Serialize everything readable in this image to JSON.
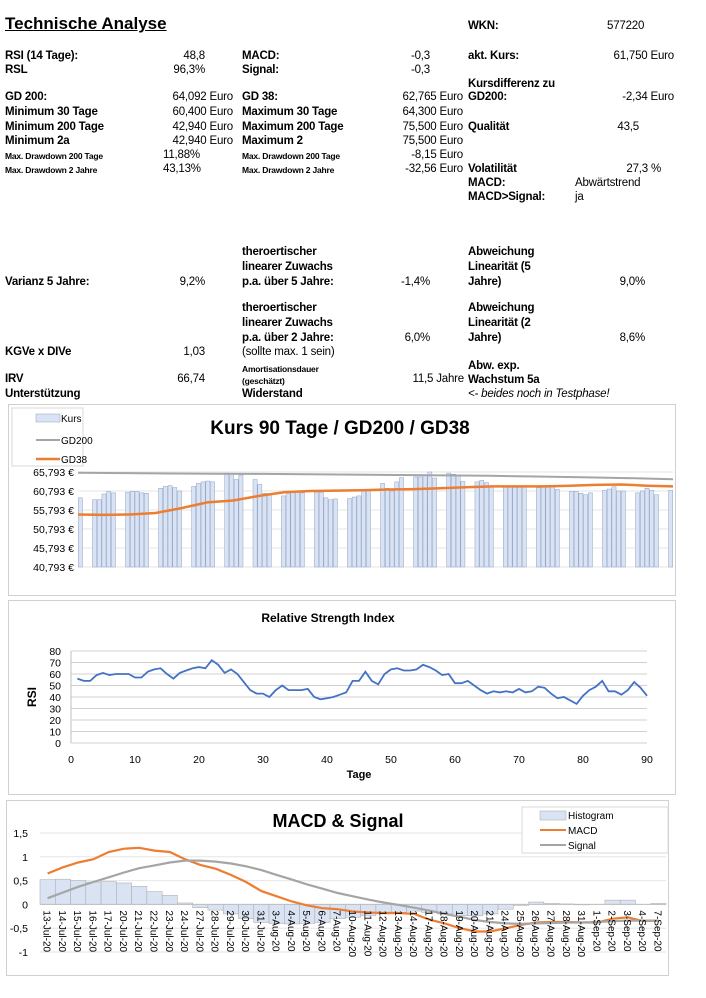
{
  "header": {
    "title": "Technische Analyse",
    "wkn_label": "WKN:",
    "wkn_value": "577220"
  },
  "col1": {
    "rsi_label": "RSI (14 Tage):",
    "rsi": "48,8",
    "rsl_label": "RSL",
    "rsl": "96,3%",
    "gd200_label": "GD 200:",
    "gd200": "64,092 Euro",
    "min30_label": "Minimum 30 Tage",
    "min30": "60,400 Euro",
    "min200_label": "Minimum 200 Tage",
    "min200": "42,940 Euro",
    "min2a_label": "Minimum 2a",
    "min2a": "42,940 Euro",
    "mdd200_label": "Max. Drawdown 200 Tage",
    "mdd200": "11,88%",
    "mdd2_label": "Max. Drawdown 2 Jahre",
    "mdd2": "43,13%",
    "varianz_label": "Varianz 5 Jahre:",
    "varianz": "9,2%",
    "kgve_label": "KGVe x DIVe",
    "kgve": "1,03",
    "irv_label": "IRV",
    "irv": "66,74",
    "unterstuetzung_label": "Unterstützung"
  },
  "col2": {
    "macd_label": "MACD:",
    "macd": "-0,3",
    "signal_label": "Signal:",
    "signal": "-0,3",
    "gd38_label": "GD 38:",
    "gd38": "62,765 Euro",
    "max30_label": "Maximum 30 Tage",
    "max30": "64,300 Euro",
    "max200_label": "Maximum 200 Tage",
    "max200": "75,500 Euro",
    "max2_label": "Maximum 2",
    "max2": "75,500 Euro",
    "mdd200_label": "Max. Drawdown 200 Tage",
    "mdd200": "-8,15 Euro",
    "mdd2_label": "Max. Drawdown 2 Jahre",
    "mdd2": "-32,56 Euro",
    "zuwachs5_l1": "theroertischer",
    "zuwachs5_l2": "linearer Zuwachs",
    "zuwachs5_l3": "p.a. über 5 Jahre:",
    "zuwachs5": "-1,4%",
    "zuwachs2_l1": "theroertischer",
    "zuwachs2_l2": "linearer Zuwachs",
    "zuwachs2_l3": "p.a. über 2 Jahre:",
    "zuwachs2": "6,0%",
    "sollte": "(sollte max. 1 sein)",
    "amort_l1": "Amortisationsdauer",
    "amort_l2": "(geschätzt)",
    "amort": "11,5 Jahre",
    "widerstand_label": "Widerstand"
  },
  "col3": {
    "kurs_label": "akt. Kurs:",
    "kurs": "61,750 Euro",
    "kursdiff_l1": "Kursdifferenz zu",
    "kursdiff_l2": "GD200:",
    "kursdiff": "-2,34 Euro",
    "qualitaet_label": "Qualität",
    "qualitaet": "43,5",
    "volatilitaet_label": "Volatilität",
    "volatilitaet": "27,3 %",
    "macd_label": "MACD:",
    "macd_trend": "Abwärtstrend",
    "macdsig_label": "MACD>Signal:",
    "macdsig": "ja",
    "lin5_l1": "Abweichung",
    "lin5_l2": "Linearität (5",
    "lin5_l3": "Jahre)",
    "lin5": "9,0%",
    "lin2_l1": "Abweichung",
    "lin2_l2": "Linearität (2",
    "lin2_l3": "Jahre)",
    "lin2": "8,6%",
    "abw_l1": "Abw. exp.",
    "abw_l2": "Wachstum 5a",
    "test_note": "<- beides noch in Testphase!"
  },
  "chart_data": [
    {
      "type": "bar",
      "title": "Kurs 90 Tage / GD200 / GD38",
      "ylim": [
        40793,
        65793
      ],
      "yticks": [
        "40,793 €",
        "45,793 €",
        "50,793 €",
        "55,793 €",
        "60,793 €",
        "65,793 €"
      ],
      "legend": "top-left",
      "series": [
        {
          "name": "Kurs",
          "kind": "bar",
          "color": "#dae3f3",
          "values": [
            59.0,
            null,
            null,
            58.5,
            58.5,
            60.0,
            60.7,
            60.3,
            null,
            null,
            60.5,
            60.7,
            60.7,
            60.3,
            60.2,
            null,
            null,
            61.5,
            62.0,
            62.2,
            61.7,
            60.8,
            null,
            null,
            62.0,
            62.8,
            63.2,
            63.4,
            63.2,
            null,
            null,
            65.5,
            65.2,
            63.8,
            65.0,
            null,
            null,
            63.8,
            62.5,
            60.2,
            60.1,
            null,
            null,
            59.5,
            60.2,
            60.5,
            60.5,
            60.3,
            null,
            null,
            60.5,
            60.5,
            59.0,
            58.5,
            58.7,
            null,
            null,
            58.8,
            59.2,
            59.5,
            61.0,
            61.0,
            null,
            null,
            62.8,
            61.5,
            60.8,
            63.2,
            64.3,
            null,
            null,
            64.5,
            64.5,
            65.0,
            65.8,
            64.2,
            null,
            null,
            65.5,
            65.2,
            64.8,
            63.3,
            null,
            null,
            63.2,
            63.6,
            63.0,
            61.8,
            null,
            null,
            62.0,
            62.0,
            62.0,
            62.0,
            62.0,
            null,
            null,
            61.7,
            61.8,
            62.0,
            62.0,
            61.2,
            null,
            null,
            60.7,
            60.7,
            60.2,
            59.8,
            60.3,
            null,
            null,
            61.0,
            61.3,
            61.9,
            60.8,
            60.8,
            null,
            null,
            60.3,
            60.8,
            61.5,
            61.0,
            59.8,
            null,
            null,
            61.0
          ]
        },
        {
          "name": "GD200",
          "kind": "line",
          "color": "#a5a5a5",
          "values": [
            65.6,
            65.5,
            65.4,
            65.35,
            65.3,
            65.2,
            65.1,
            65.0,
            64.9,
            64.8,
            64.6,
            64.4,
            64.2,
            63.9
          ]
        },
        {
          "name": "GD38",
          "kind": "line",
          "color": "#ed7d31",
          "values": [
            54.6,
            54.5,
            54.6,
            55.0,
            56.3,
            57.8,
            58.3,
            59.5,
            60.5,
            60.8,
            60.9,
            61.0,
            61.2,
            61.3,
            61.5,
            61.8,
            62.0,
            62.0,
            62.0,
            62.2,
            62.4,
            62.5,
            62.2,
            62.0
          ]
        }
      ]
    },
    {
      "type": "line",
      "title": "Relative Strength Index",
      "xlabel": "Tage",
      "ylabel": "RSI",
      "xlim": [
        0,
        90
      ],
      "ylim": [
        0,
        80
      ],
      "xticks": [
        0,
        10,
        20,
        30,
        40,
        50,
        60,
        70,
        80,
        90
      ],
      "yticks": [
        0,
        10,
        20,
        30,
        40,
        50,
        60,
        70,
        80
      ],
      "grid": true,
      "color": "#4472c4",
      "values": [
        56,
        54,
        54,
        59,
        61,
        59,
        60,
        60,
        60,
        57,
        57,
        62,
        64,
        65,
        60,
        56,
        61,
        63,
        65,
        66,
        65,
        72,
        68,
        61,
        64,
        60,
        53,
        46,
        43,
        43,
        40,
        46,
        50,
        46,
        46,
        46,
        47,
        40,
        38,
        39,
        40,
        42,
        44,
        54,
        54,
        62,
        54,
        51,
        60,
        64,
        65,
        63,
        63,
        64,
        68,
        66,
        63,
        59,
        60,
        52,
        52,
        54,
        50,
        46,
        43,
        45,
        44,
        45,
        44,
        47,
        44,
        45,
        49,
        48,
        43,
        39,
        40,
        37,
        34,
        41,
        46,
        49,
        54,
        45,
        45,
        42,
        46,
        53,
        48,
        41
      ]
    },
    {
      "type": "bar",
      "title": "MACD & Signal",
      "ylim": [
        -1,
        1.5
      ],
      "yticks": [
        "-1",
        "-0,5",
        "0",
        "0,5",
        "1",
        "1,5"
      ],
      "legend": "top-right",
      "categories": [
        "13-Jul-20",
        "14-Jul-20",
        "15-Jul-20",
        "16-Jul-20",
        "17-Jul-20",
        "20-Jul-20",
        "21-Jul-20",
        "22-Jul-20",
        "23-Jul-20",
        "24-Jul-20",
        "27-Jul-20",
        "28-Jul-20",
        "29-Jul-20",
        "30-Jul-20",
        "31-Jul-20",
        "3-Aug-20",
        "4-Aug-20",
        "5-Aug-20",
        "6-Aug-20",
        "7-Aug-20",
        "10-Aug-20",
        "11-Aug-20",
        "12-Aug-20",
        "13-Aug-20",
        "14-Aug-20",
        "17-Aug-20",
        "18-Aug-20",
        "19-Aug-20",
        "20-Aug-20",
        "21-Aug-20",
        "24-Aug-20",
        "25-Aug-20",
        "26-Aug-20",
        "27-Aug-20",
        "28-Aug-20",
        "31-Aug-20",
        "1-Sep-20",
        "2-Sep-20",
        "3-Sep-20",
        "4-Sep-20",
        "7-Sep-20"
      ],
      "series": [
        {
          "name": "Histogram",
          "kind": "bar",
          "color": "#dae3f3",
          "values": [
            0.52,
            0.53,
            0.5,
            0.47,
            0.48,
            0.45,
            0.38,
            0.27,
            0.19,
            0.03,
            -0.07,
            -0.12,
            -0.2,
            -0.3,
            -0.38,
            -0.4,
            -0.41,
            -0.4,
            -0.38,
            -0.3,
            -0.27,
            -0.24,
            -0.2,
            -0.17,
            -0.14,
            -0.17,
            -0.2,
            -0.24,
            -0.24,
            -0.2,
            -0.1,
            -0.02,
            0.05,
            0.02,
            0.01,
            -0.01,
            0,
            0.09,
            0.09,
            0,
            0.02
          ]
        },
        {
          "name": "MACD",
          "kind": "line",
          "color": "#ed7d31",
          "values": [
            0.65,
            0.78,
            0.88,
            0.95,
            1.1,
            1.17,
            1.19,
            1.13,
            1.1,
            0.95,
            0.83,
            0.75,
            0.62,
            0.47,
            0.28,
            0.17,
            0.06,
            -0.02,
            -0.08,
            -0.1,
            -0.15,
            -0.17,
            -0.18,
            -0.18,
            -0.2,
            -0.32,
            -0.4,
            -0.5,
            -0.57,
            -0.57,
            -0.5,
            -0.43,
            -0.38,
            -0.37,
            -0.37,
            -0.38,
            -0.38,
            -0.3,
            -0.27,
            -0.35,
            -0.34
          ]
        },
        {
          "name": "Signal",
          "kind": "line",
          "color": "#a5a5a5",
          "values": [
            0.13,
            0.25,
            0.37,
            0.47,
            0.57,
            0.67,
            0.76,
            0.82,
            0.88,
            0.92,
            0.92,
            0.9,
            0.86,
            0.8,
            0.72,
            0.62,
            0.52,
            0.42,
            0.33,
            0.24,
            0.17,
            0.1,
            0.04,
            -0.01,
            -0.07,
            -0.13,
            -0.2,
            -0.26,
            -0.33,
            -0.37,
            -0.4,
            -0.41,
            -0.4,
            -0.39,
            -0.38,
            -0.38,
            -0.37,
            -0.35,
            -0.34,
            -0.34,
            -0.34
          ]
        }
      ]
    }
  ]
}
